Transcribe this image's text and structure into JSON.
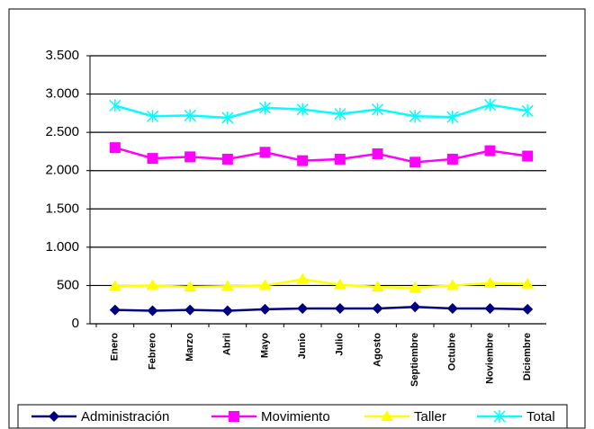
{
  "chart_data": {
    "type": "line",
    "categories": [
      "Enero",
      "Febrero",
      "Marzo",
      "Abril",
      "Mayo",
      "Junio",
      "Julio",
      "Agosto",
      "Septiembre",
      "Octubre",
      "Noviembre",
      "Diciembre"
    ],
    "series": [
      {
        "name": "Administración",
        "color": "#000080",
        "marker": "diamond",
        "values": [
          180,
          170,
          180,
          170,
          190,
          200,
          200,
          200,
          220,
          200,
          200,
          190
        ]
      },
      {
        "name": "Movimiento",
        "color": "#ff00ff",
        "marker": "square",
        "values": [
          2300,
          2160,
          2180,
          2150,
          2240,
          2130,
          2150,
          2220,
          2110,
          2150,
          2260,
          2190
        ]
      },
      {
        "name": "Taller",
        "color": "#ffff00",
        "marker": "triangle",
        "values": [
          490,
          500,
          480,
          490,
          500,
          580,
          510,
          480,
          470,
          500,
          530,
          520
        ]
      },
      {
        "name": "Total",
        "color": "#00ffff",
        "marker": "star",
        "values": [
          2850,
          2710,
          2720,
          2690,
          2820,
          2800,
          2740,
          2800,
          2710,
          2700,
          2860,
          2780
        ]
      }
    ],
    "ylim": [
      0,
      3500
    ],
    "yticks": [
      0,
      500,
      {
        "value": 1000,
        "label": "1.000"
      },
      {
        "value": 1500,
        "label": "1.500"
      },
      {
        "value": 2000,
        "label": "2.000"
      },
      {
        "value": 2500,
        "label": "2.500"
      },
      {
        "value": 3000,
        "label": "3.000"
      },
      {
        "value": 3500,
        "label": "3.500"
      }
    ],
    "grid": true,
    "legend": "bottom"
  }
}
